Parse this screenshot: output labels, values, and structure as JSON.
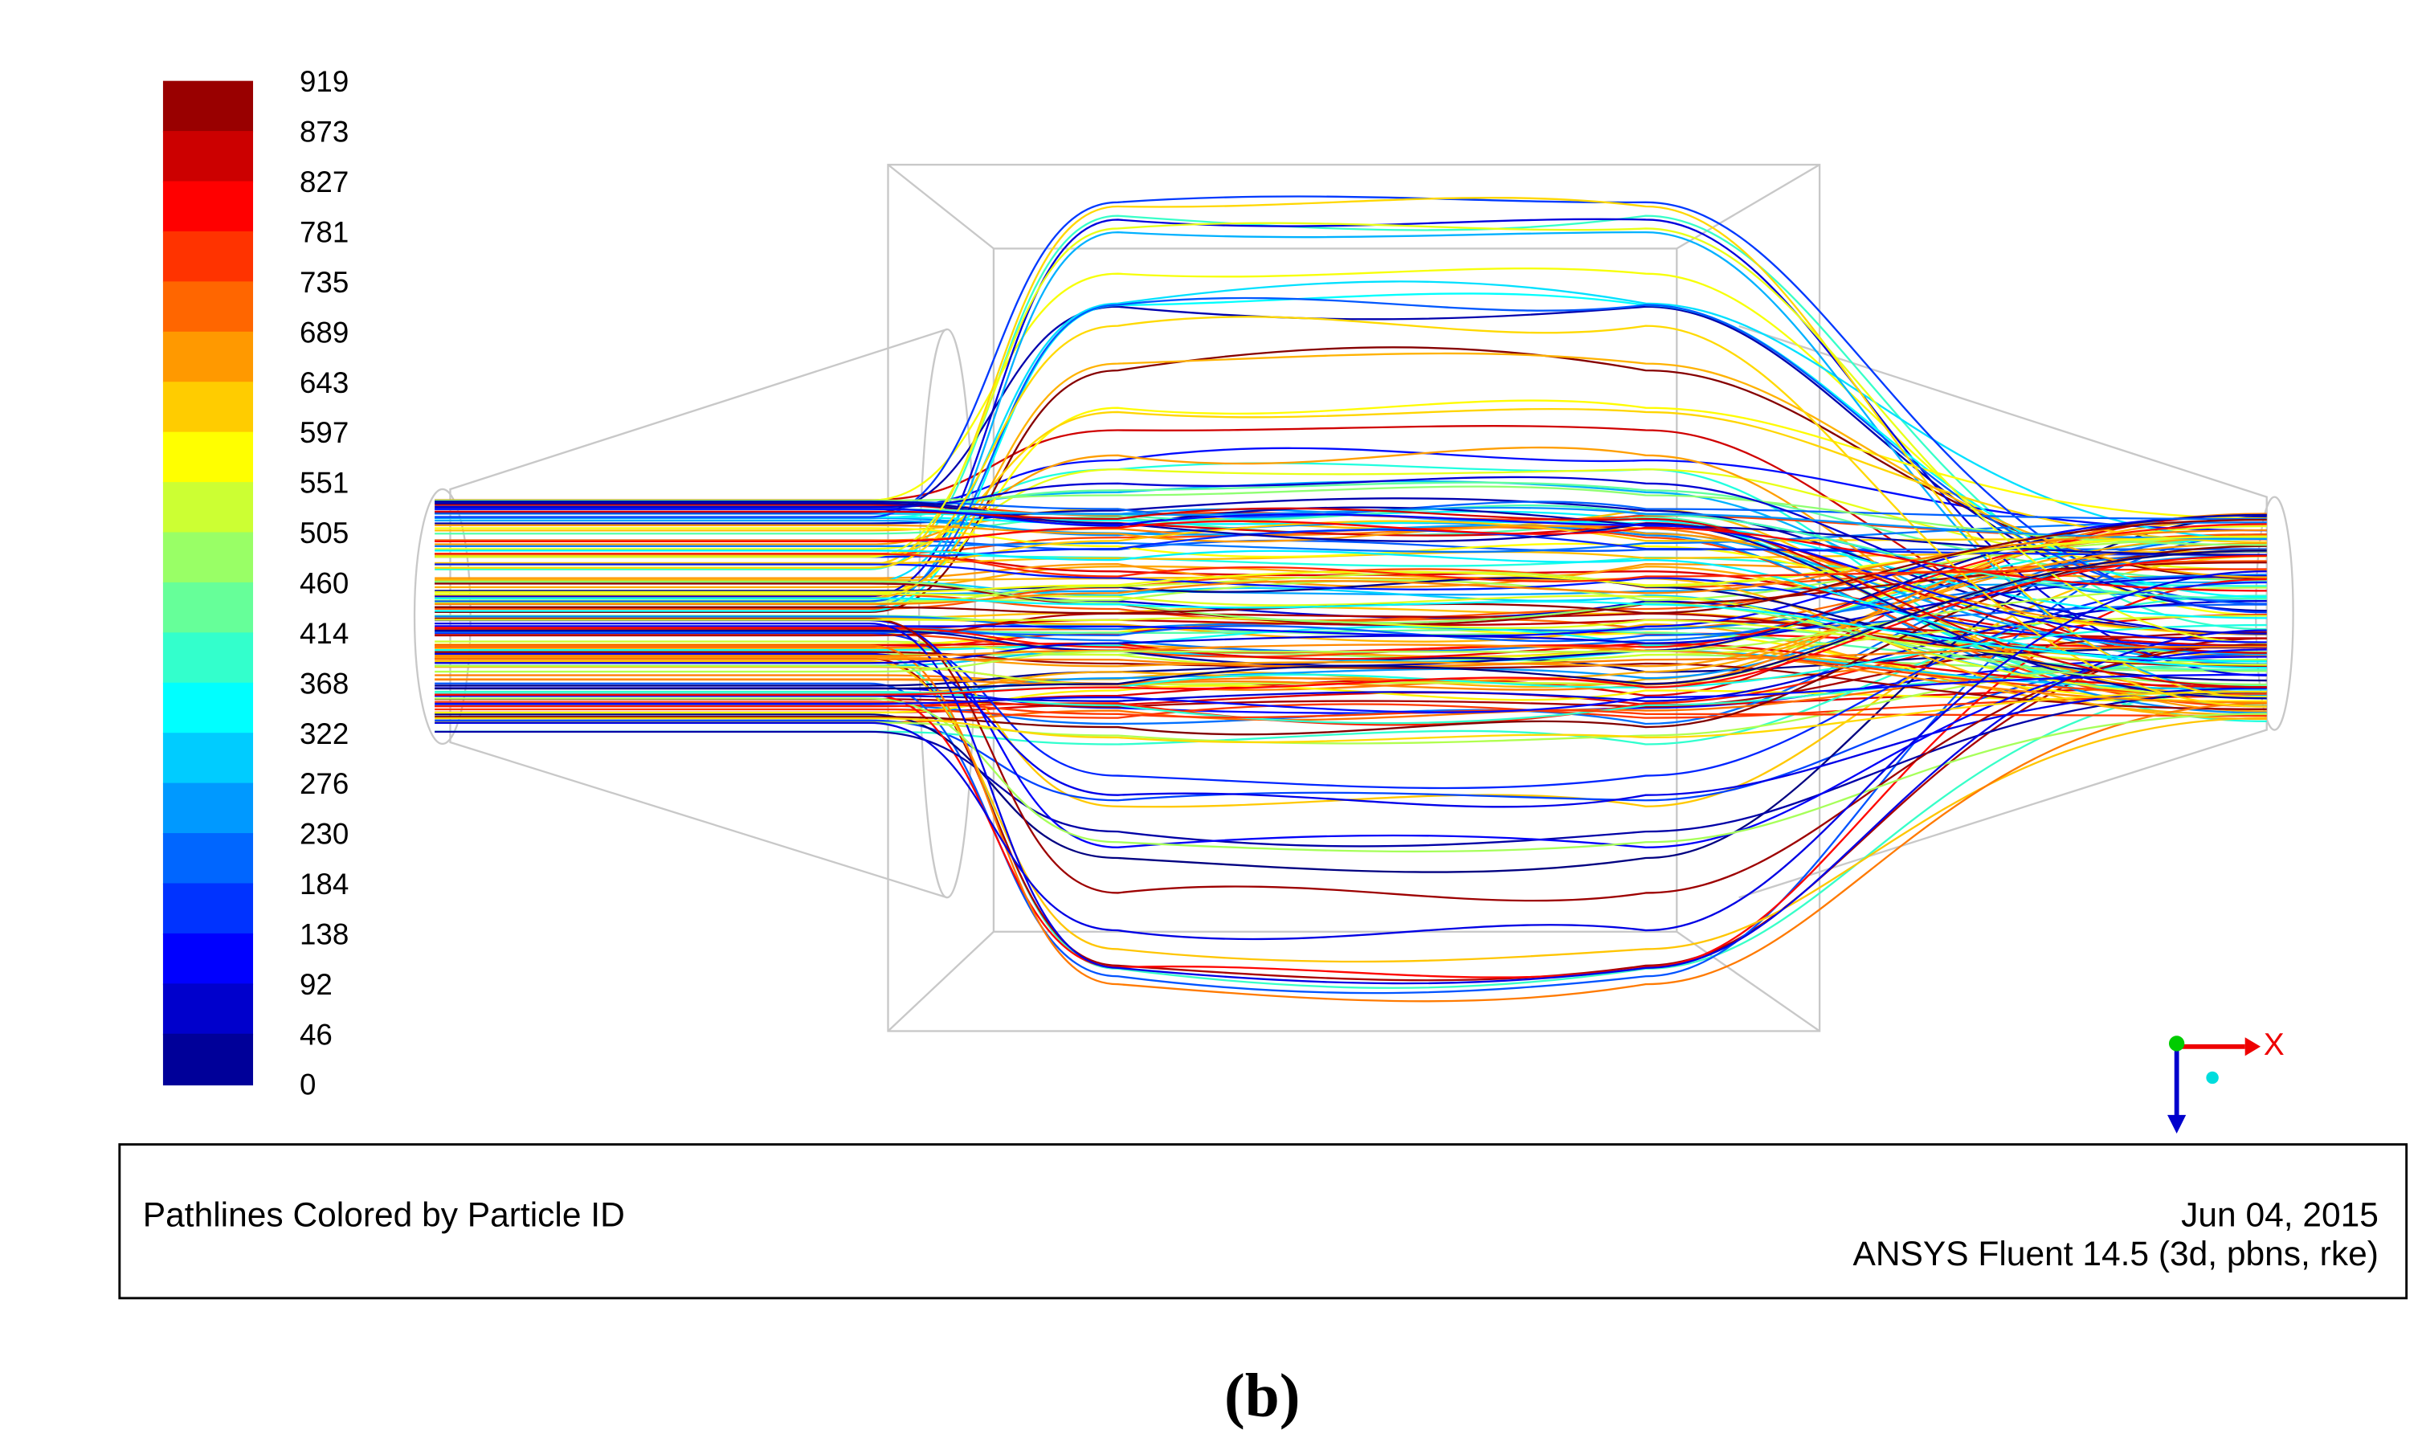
{
  "colorbar": {
    "labels": [
      919,
      873,
      827,
      781,
      735,
      689,
      643,
      597,
      551,
      505,
      460,
      414,
      368,
      322,
      276,
      230,
      184,
      138,
      92,
      46,
      0
    ]
  },
  "axis_triad": {
    "x_label": "X"
  },
  "caption": {
    "title": "Pathlines Colored by Particle ID",
    "date": "Jun 04, 2015",
    "software": "ANSYS Fluent 14.5 (3d, pbns, rke)"
  },
  "figure_label": "(b)"
}
